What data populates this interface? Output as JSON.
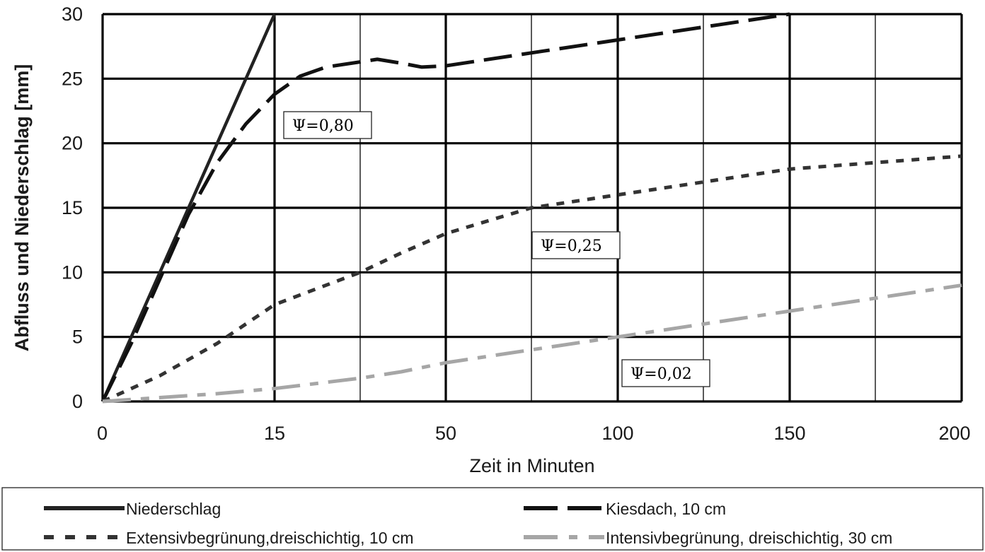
{
  "chart_data": {
    "type": "line",
    "xlabel": "Zeit in Minuten",
    "ylabel": "Abfluss und Niederschlag [mm]",
    "x_tick_labels": [
      "0",
      "15",
      "50",
      "100",
      "150",
      "200"
    ],
    "y_ticks": [
      0,
      5,
      10,
      15,
      20,
      25,
      30
    ],
    "ylim": [
      0,
      30
    ],
    "grid": true,
    "legend_position": "bottom",
    "series": [
      {
        "name": "Niederschlag",
        "style": "solid",
        "color": "#222222",
        "x": [
          0,
          15
        ],
        "y": [
          0,
          30
        ]
      },
      {
        "name": "Kiesdach, 10 cm",
        "style": "long-dash",
        "color": "#111111",
        "x": [
          0,
          2.5,
          5,
          7.5,
          10,
          12.5,
          15,
          18,
          21,
          25,
          30,
          37,
          43,
          50,
          75,
          100,
          125,
          150
        ],
        "y": [
          0,
          4.5,
          9.5,
          14.5,
          18.5,
          21.5,
          23.8,
          25.2,
          25.9,
          26.3,
          26.5,
          26.2,
          25.9,
          26,
          27,
          28,
          29,
          30
        ]
      },
      {
        "name": "Extensivbegrünung,dreischichtig, 10 cm",
        "style": "short-dash",
        "color": "#333333",
        "x": [
          0,
          5,
          10,
          15,
          25,
          37,
          50,
          75,
          100,
          150,
          200
        ],
        "y": [
          0,
          2,
          4.5,
          7.5,
          10,
          11.5,
          13,
          15,
          16,
          18,
          19
        ]
      },
      {
        "name": "Intensivbegrünung, dreischichtig, 30 cm",
        "style": "dash-dot",
        "color": "#a6a6a6",
        "x": [
          0,
          5,
          10,
          15,
          25,
          37,
          50,
          75,
          100,
          150,
          200
        ],
        "y": [
          0,
          0.3,
          0.6,
          1,
          1.8,
          2.3,
          3,
          4,
          5,
          7,
          9
        ]
      }
    ],
    "annotations": [
      {
        "text": "Ψ=0,80"
      },
      {
        "text": "Ψ=0,25"
      },
      {
        "text": "Ψ=0,02"
      }
    ]
  }
}
